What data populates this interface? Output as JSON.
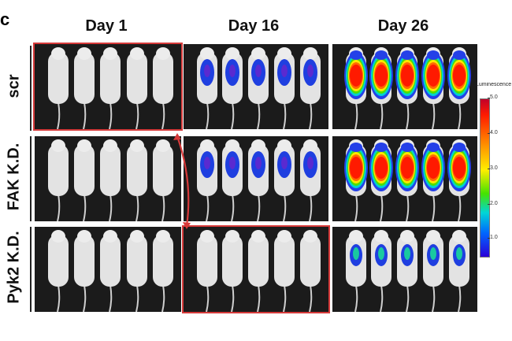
{
  "panel_label": "c",
  "columns": [
    "Day 1",
    "Day 16",
    "Day 26"
  ],
  "rows": [
    "scr",
    "FAK K.D.",
    "Pyk2 K.D."
  ],
  "colorbar": {
    "title": "Luminescence",
    "ticks": [
      "5.0",
      "4.0",
      "3.0",
      "2.0",
      "1.0"
    ]
  },
  "highlight_color": "#d63a3a",
  "panels": [
    [
      "none",
      "medium",
      "high"
    ],
    [
      "none",
      "medium",
      "high"
    ],
    [
      "none",
      "none",
      "low"
    ]
  ]
}
